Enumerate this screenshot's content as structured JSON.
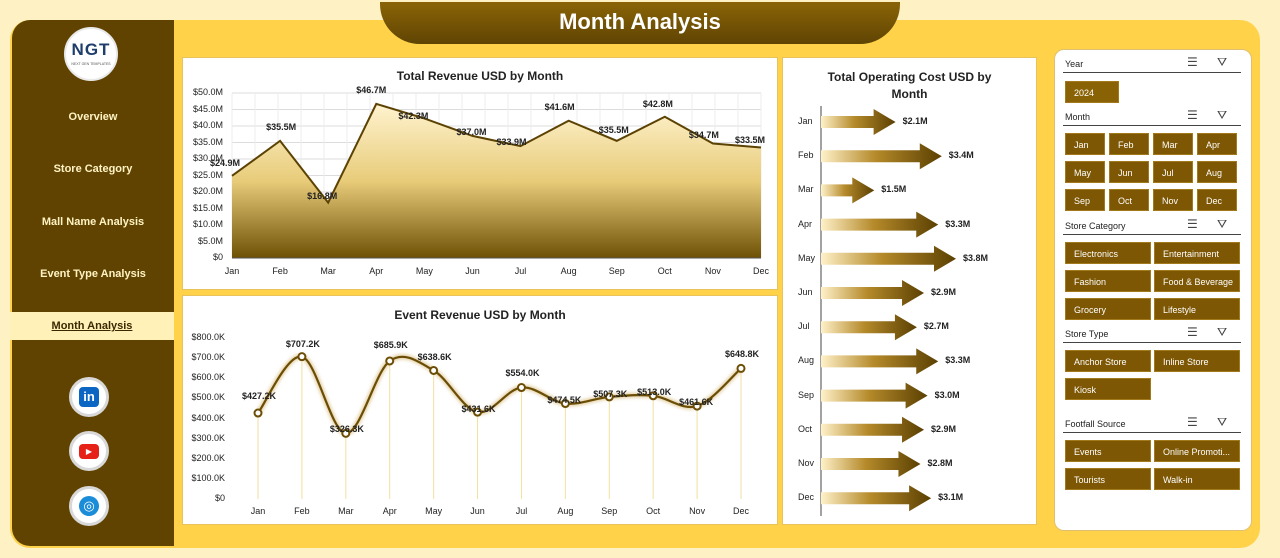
{
  "app_title": "Month Analysis",
  "logo": {
    "text": "NGT",
    "subtext": "NEXT GEN TEMPLATES"
  },
  "nav": [
    "Overview",
    "Store Category",
    "Mall Name Analysis",
    "Event Type Analysis",
    "Month Analysis"
  ],
  "active_nav": "Month Analysis",
  "social": [
    {
      "icon": "linkedin-icon",
      "label": "in",
      "color": "#0a66c2"
    },
    {
      "icon": "youtube-icon",
      "label": "▶",
      "color": "#e62117"
    },
    {
      "icon": "globe-icon",
      "label": "◎",
      "color": "#1a8cd8"
    }
  ],
  "charts": {
    "revenue": {
      "title": "Total Revenue USD by Month",
      "ticks": [
        "$50.0M",
        "$45.0M",
        "$40.0M",
        "$35.0M",
        "$30.0M",
        "$25.0M",
        "$20.0M",
        "$15.0M",
        "$10.0M",
        "$5.0M",
        "$0"
      ],
      "labels": [
        "$24.9M",
        "$35.5M",
        "$16.8M",
        "$46.7M",
        "$42.3M",
        "$37.0M",
        "$33.9M",
        "$41.6M",
        "$35.5M",
        "$42.8M",
        "$34.7M",
        "$33.5M"
      ]
    },
    "event": {
      "title": "Event Revenue USD by Month",
      "ticks": [
        "$800.0K",
        "$700.0K",
        "$600.0K",
        "$500.0K",
        "$400.0K",
        "$300.0K",
        "$200.0K",
        "$100.0K",
        "$0"
      ],
      "labels": [
        "$427.2K",
        "$707.2K",
        "$326.3K",
        "$685.9K",
        "$638.6K",
        "$431.6K",
        "$554.0K",
        "$474.5K",
        "$507.3K",
        "$513.0K",
        "$461.6K",
        "$648.8K"
      ]
    },
    "cost": {
      "title_line1": "Total Operating Cost USD by",
      "title_line2": "Month",
      "labels": [
        "$2.1M",
        "$3.4M",
        "$1.5M",
        "$3.3M",
        "$3.8M",
        "$2.9M",
        "$2.7M",
        "$3.3M",
        "$3.0M",
        "$2.9M",
        "$2.8M",
        "$3.1M"
      ]
    }
  },
  "months": [
    "Jan",
    "Feb",
    "Mar",
    "Apr",
    "May",
    "Jun",
    "Jul",
    "Aug",
    "Sep",
    "Oct",
    "Nov",
    "Dec"
  ],
  "chart_data": [
    {
      "type": "area",
      "title": "Total Revenue USD by Month",
      "categories": [
        "Jan",
        "Feb",
        "Mar",
        "Apr",
        "May",
        "Jun",
        "Jul",
        "Aug",
        "Sep",
        "Oct",
        "Nov",
        "Dec"
      ],
      "values": [
        24.9,
        35.5,
        16.8,
        46.7,
        42.3,
        37.0,
        33.9,
        41.6,
        35.5,
        42.8,
        34.7,
        33.5
      ],
      "units": "USD millions",
      "ylim": [
        0,
        50
      ],
      "grid": true
    },
    {
      "type": "line",
      "title": "Event Revenue USD by Month",
      "categories": [
        "Jan",
        "Feb",
        "Mar",
        "Apr",
        "May",
        "Jun",
        "Jul",
        "Aug",
        "Sep",
        "Oct",
        "Nov",
        "Dec"
      ],
      "values": [
        427.2,
        707.2,
        326.3,
        685.9,
        638.6,
        431.6,
        554.0,
        474.5,
        507.3,
        513.0,
        461.6,
        648.8
      ],
      "units": "USD thousands",
      "ylim": [
        0,
        800
      ],
      "grid": false
    },
    {
      "type": "bar",
      "orientation": "horizontal",
      "title": "Total Operating Cost USD by Month",
      "categories": [
        "Jan",
        "Feb",
        "Mar",
        "Apr",
        "May",
        "Jun",
        "Jul",
        "Aug",
        "Sep",
        "Oct",
        "Nov",
        "Dec"
      ],
      "values": [
        2.1,
        3.4,
        1.5,
        3.3,
        3.8,
        2.9,
        2.7,
        3.3,
        3.0,
        2.9,
        2.8,
        3.1
      ],
      "units": "USD millions"
    }
  ],
  "slicers": {
    "year": {
      "title": "Year",
      "items": [
        "2024"
      ]
    },
    "month": {
      "title": "Month",
      "items": [
        "Jan",
        "Feb",
        "Mar",
        "Apr",
        "May",
        "Jun",
        "Jul",
        "Aug",
        "Sep",
        "Oct",
        "Nov",
        "Dec"
      ]
    },
    "store_category": {
      "title": "Store Category",
      "items": [
        "Electronics",
        "Entertainment",
        "Fashion",
        "Food & Beverage",
        "Grocery",
        "Lifestyle"
      ]
    },
    "store_type": {
      "title": "Store Type",
      "items": [
        "Anchor Store",
        "Inline Store",
        "Kiosk"
      ]
    },
    "footfall": {
      "title": "Footfall Source",
      "items": [
        "Events",
        "Online Promoti...",
        "Tourists",
        "Walk-in"
      ]
    }
  },
  "colors": {
    "brown_dark": "#604300",
    "gold": "#ffd24a",
    "button": "#7d5704"
  }
}
